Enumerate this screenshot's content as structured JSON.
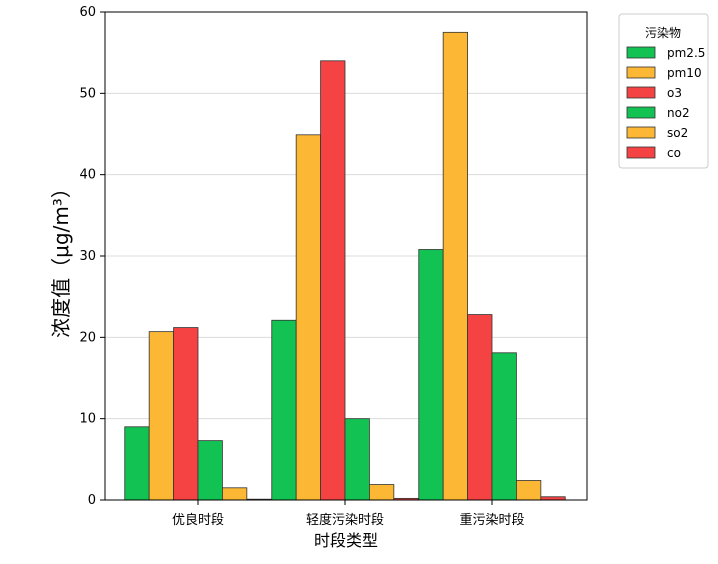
{
  "chart_data": {
    "type": "bar",
    "title": "",
    "xlabel": "时段类型",
    "ylabel": "浓度值（μg/m³）",
    "ylim": [
      0,
      60
    ],
    "yticks": [
      0,
      10,
      20,
      30,
      40,
      50,
      60
    ],
    "grid": "horizontal",
    "legend_title": "污染物",
    "legend_position": "upper-right-outside",
    "categories": [
      "优良时段",
      "轻度污染时段",
      "重污染时段"
    ],
    "series": [
      {
        "name": "pm2.5",
        "color": "#12c253",
        "values": [
          9.0,
          22.1,
          30.8
        ]
      },
      {
        "name": "pm10",
        "color": "#fcb834",
        "values": [
          20.7,
          44.9,
          57.5
        ]
      },
      {
        "name": "o3",
        "color": "#f54242",
        "values": [
          21.2,
          54.0,
          22.8
        ]
      },
      {
        "name": "no2",
        "color": "#12c253",
        "values": [
          7.3,
          10.0,
          18.1
        ]
      },
      {
        "name": "so2",
        "color": "#fcb834",
        "values": [
          1.5,
          1.9,
          2.4
        ]
      },
      {
        "name": "co",
        "color": "#f54242",
        "values": [
          0.1,
          0.2,
          0.4
        ]
      }
    ]
  }
}
